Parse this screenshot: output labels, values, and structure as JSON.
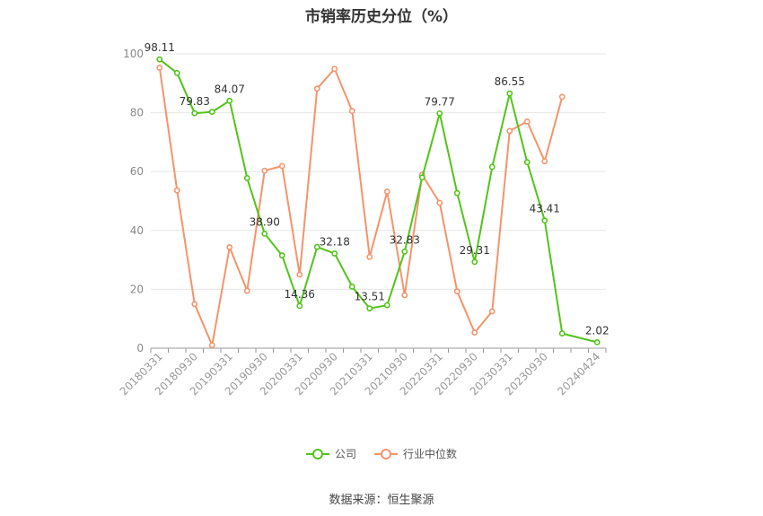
{
  "title": "市销率历史分位（%）",
  "source": "数据来源：恒生聚源",
  "chart_data": {
    "type": "line",
    "title": "市销率历史分位（%）",
    "ylim": [
      0,
      100
    ],
    "yticks": [
      0,
      20,
      40,
      60,
      80,
      100
    ],
    "x": [
      "20180331",
      "20180630",
      "20180930",
      "20181231",
      "20190331",
      "20190630",
      "20190930",
      "20191231",
      "20200331",
      "20200630",
      "20200930",
      "20201231",
      "20210331",
      "20210630",
      "20210930",
      "20211231",
      "20220331",
      "20220630",
      "20220930",
      "20221231",
      "20230331",
      "20230630",
      "20230930",
      "20231231",
      "20240331",
      "20240424"
    ],
    "x_tick_labels": [
      "20180331",
      "20180930",
      "20190331",
      "20190930",
      "20200331",
      "20200930",
      "20210331",
      "20210930",
      "20220331",
      "20220930",
      "20230331",
      "20230930",
      "20240424"
    ],
    "grid": true,
    "legend_position": "bottom",
    "series": [
      {
        "name": "公司",
        "color": "#52c41a",
        "values": [
          98.11,
          93.5,
          79.83,
          80.3,
          84.07,
          57.8,
          38.9,
          31.5,
          14.36,
          34.4,
          32.18,
          20.9,
          13.51,
          14.6,
          32.83,
          58.0,
          79.77,
          52.7,
          29.31,
          61.6,
          86.55,
          63.2,
          43.41,
          5.0,
          null,
          2.02
        ],
        "labels": {
          "0": "98.11",
          "2": "79.83",
          "4": "84.07",
          "6": "38.90",
          "8": "14.36",
          "10": "32.18",
          "12": "13.51",
          "14": "32.83",
          "16": "79.77",
          "18": "29.31",
          "20": "86.55",
          "22": "43.41",
          "25": "2.02"
        }
      },
      {
        "name": "行业中位数",
        "color": "#f4946b",
        "values": [
          95.3,
          53.6,
          15.0,
          1.0,
          34.3,
          19.5,
          60.3,
          61.9,
          25.0,
          88.2,
          94.9,
          80.6,
          31.0,
          53.2,
          18.0,
          58.9,
          49.4,
          19.3,
          5.3,
          12.5,
          73.8,
          77.0,
          63.5,
          85.4,
          null,
          null
        ],
        "labels": {}
      }
    ]
  }
}
